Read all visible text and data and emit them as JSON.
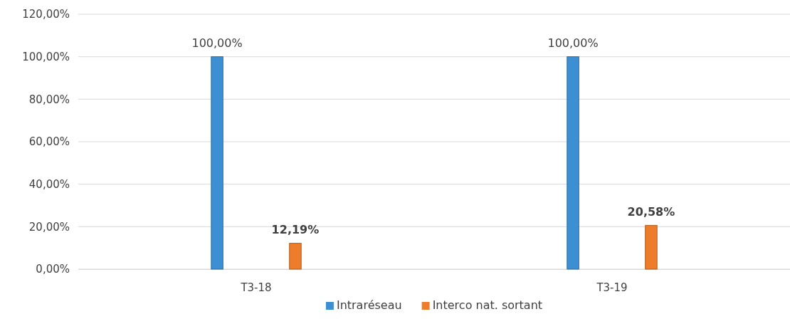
{
  "chart_data": {
    "type": "bar",
    "categories": [
      "T3-18",
      "T3-19"
    ],
    "series": [
      {
        "name": "Intraréseau",
        "color": "#3d8fd3",
        "values": [
          100,
          100
        ],
        "value_labels": [
          "100,00%",
          "100,00%"
        ]
      },
      {
        "name": "Interco nat. sortant",
        "color": "#ee7d2b",
        "values": [
          12.19,
          20.58
        ],
        "value_labels": [
          "12,19%",
          "20,58%"
        ]
      }
    ],
    "ylim": [
      0,
      120
    ],
    "yticks": [
      {
        "value": 0,
        "label": "0,00%"
      },
      {
        "value": 20,
        "label": "20,00%"
      },
      {
        "value": 40,
        "label": "40,00%"
      },
      {
        "value": 60,
        "label": "60,00%"
      },
      {
        "value": 80,
        "label": "80,00%"
      },
      {
        "value": 100,
        "label": "100,00%"
      },
      {
        "value": 120,
        "label": "120,00%"
      }
    ],
    "grid": "y",
    "legend": "bottom"
  }
}
